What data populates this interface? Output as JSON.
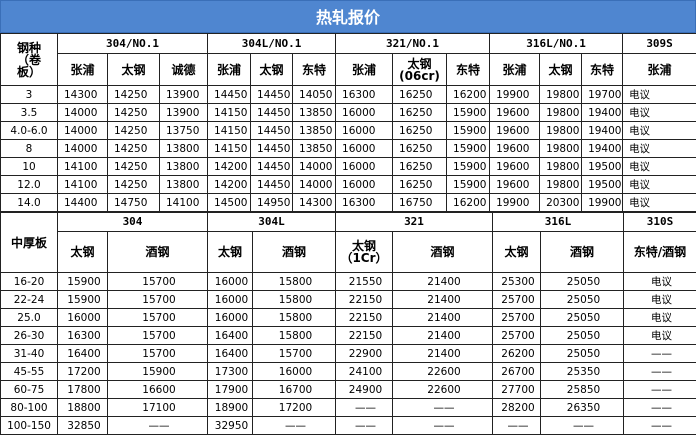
{
  "title": "热轧报价",
  "coil": {
    "corner": "钢种\n（卷\n板）",
    "groups": [
      {
        "name": "304/NO.1",
        "mills": [
          "张浦",
          "太钢",
          "诚德"
        ]
      },
      {
        "name": "304L/NO.1",
        "mills": [
          "张浦",
          "太钢",
          "东特"
        ]
      },
      {
        "name": "321/NO.1",
        "mills": [
          "张浦",
          "太钢\n(06cr)",
          "东特"
        ]
      },
      {
        "name": "316L/NO.1",
        "mills": [
          "张浦",
          "太钢",
          "东特"
        ]
      },
      {
        "name": "309S",
        "mills": [
          "张浦"
        ]
      }
    ],
    "rows": [
      {
        "spec": "3",
        "prices": [
          14300,
          14250,
          13900,
          14450,
          14450,
          14050,
          16300,
          16250,
          16200,
          19900,
          19800,
          19700,
          "电议"
        ]
      },
      {
        "spec": "3.5",
        "prices": [
          14000,
          14250,
          13900,
          14150,
          14450,
          13850,
          16000,
          16250,
          15900,
          19600,
          19800,
          19400,
          "电议"
        ]
      },
      {
        "spec": "4.0-6.0",
        "prices": [
          14000,
          14250,
          13750,
          14150,
          14450,
          13850,
          16000,
          16250,
          15900,
          19600,
          19800,
          19400,
          "电议"
        ]
      },
      {
        "spec": "8",
        "prices": [
          14000,
          14250,
          13800,
          14150,
          14450,
          13850,
          16000,
          16250,
          15900,
          19600,
          19800,
          19400,
          "电议"
        ]
      },
      {
        "spec": "10",
        "prices": [
          14100,
          14250,
          13800,
          14200,
          14450,
          14000,
          16000,
          16250,
          15900,
          19600,
          19800,
          19500,
          "电议"
        ]
      },
      {
        "spec": "12.0",
        "prices": [
          14100,
          14250,
          13800,
          14200,
          14450,
          14000,
          16000,
          16250,
          15900,
          19600,
          19800,
          19500,
          "电议"
        ]
      },
      {
        "spec": "14.0",
        "prices": [
          14400,
          14750,
          14100,
          14500,
          14950,
          14300,
          16300,
          16750,
          16200,
          19900,
          20300,
          19900,
          "电议"
        ]
      }
    ]
  },
  "plate": {
    "corner": "中厚板",
    "groups": [
      {
        "name": "304",
        "mills": [
          "太钢",
          "酒钢"
        ]
      },
      {
        "name": "304L",
        "mills": [
          "太钢",
          "酒钢"
        ]
      },
      {
        "name": "321",
        "mills": [
          "太钢\n（1Cr）",
          "酒钢"
        ]
      },
      {
        "name": "316L",
        "mills": [
          "太钢",
          "酒钢"
        ]
      },
      {
        "name": "310S",
        "mills": [
          "东特/酒钢"
        ]
      }
    ],
    "rows": [
      {
        "spec": "16-20",
        "prices": [
          15900,
          15700,
          16000,
          15800,
          21550,
          21400,
          25300,
          25050,
          "电议"
        ]
      },
      {
        "spec": "22-24",
        "prices": [
          15900,
          15700,
          16000,
          15800,
          22150,
          21400,
          25700,
          25050,
          "电议"
        ]
      },
      {
        "spec": "25.0",
        "prices": [
          16000,
          15700,
          16000,
          15800,
          22150,
          21400,
          25700,
          25050,
          "电议"
        ]
      },
      {
        "spec": "26-30",
        "prices": [
          16300,
          15700,
          16400,
          15800,
          22150,
          21400,
          25700,
          25050,
          "电议"
        ]
      },
      {
        "spec": "31-40",
        "prices": [
          16400,
          15700,
          16400,
          15700,
          22900,
          21400,
          26200,
          25050,
          "——"
        ]
      },
      {
        "spec": "45-55",
        "prices": [
          17200,
          15900,
          17300,
          16000,
          24100,
          22600,
          26700,
          25350,
          "——"
        ]
      },
      {
        "spec": "60-75",
        "prices": [
          17800,
          16600,
          17900,
          16700,
          24900,
          22600,
          27700,
          25850,
          "——"
        ]
      },
      {
        "spec": "80-100",
        "prices": [
          18800,
          17100,
          18900,
          17200,
          "——",
          "——",
          28200,
          26350,
          "——"
        ]
      },
      {
        "spec": "100-150",
        "prices": [
          32850,
          "——",
          32950,
          "——",
          "——",
          "——",
          "——",
          "——",
          "——"
        ]
      }
    ]
  }
}
